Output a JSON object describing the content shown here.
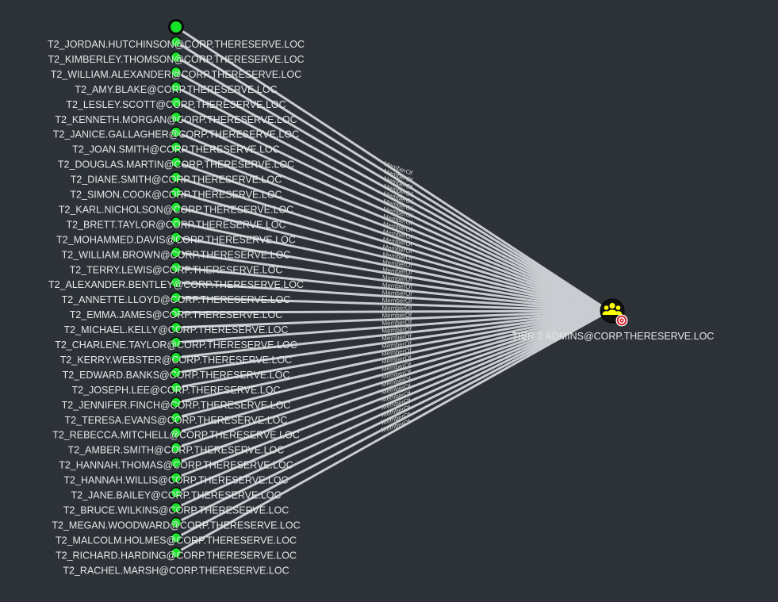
{
  "edge_label": "MemberOf",
  "colors": {
    "background": "#2d3238",
    "user_node": "#17e02a",
    "user_node_border": "#0a0a0a",
    "group_node": "#ffff00",
    "group_node_fill": "#111111",
    "target_badge": "#e0242f",
    "edge": "#c9ccd0",
    "label": "#e6e6e6"
  },
  "group": {
    "label": "TIER 2 ADMINS@CORP.THERESERVE.LOC",
    "icon": "users-group-icon",
    "badge_icon": "target-icon"
  },
  "users": [
    "T2_JORDAN.HUTCHINSON@CORP.THERESERVE.LOC",
    "T2_KIMBERLEY.THOMSON@CORP.THERESERVE.LOC",
    "T2_WILLIAM.ALEXANDER@CORP.THERESERVE.LOC",
    "T2_AMY.BLAKE@CORP.THERESERVE.LOC",
    "T2_LESLEY.SCOTT@CORP.THERESERVE.LOC",
    "T2_KENNETH.MORGAN@CORP.THERESERVE.LOC",
    "T2_JANICE.GALLAGHER@CORP.THERESERVE.LOC",
    "T2_JOAN.SMITH@CORP.THERESERVE.LOC",
    "T2_DOUGLAS.MARTIN@CORP.THERESERVE.LOC",
    "T2_DIANE.SMITH@CORP.THERESERVE.LOC",
    "T2_SIMON.COOK@CORP.THERESERVE.LOC",
    "T2_KARL.NICHOLSON@CORP.THERESERVE.LOC",
    "T2_BRETT.TAYLOR@CORP.THERESERVE.LOC",
    "T2_MOHAMMED.DAVIS@CORP.THERESERVE.LOC",
    "T2_WILLIAM.BROWN@CORP.THERESERVE.LOC",
    "T2_TERRY.LEWIS@CORP.THERESERVE.LOC",
    "T2_ALEXANDER.BENTLEY@CORP.THERESERVE.LOC",
    "T2_ANNETTE.LLOYD@CORP.THERESERVE.LOC",
    "T2_EMMA.JAMES@CORP.THERESERVE.LOC",
    "T2_MICHAEL.KELLY@CORP.THERESERVE.LOC",
    "T2_CHARLENE.TAYLOR@CORP.THERESERVE.LOC",
    "T2_KERRY.WEBSTER@CORP.THERESERVE.LOC",
    "T2_EDWARD.BANKS@CORP.THERESERVE.LOC",
    "T2_JOSEPH.LEE@CORP.THERESERVE.LOC",
    "T2_JENNIFER.FINCH@CORP.THERESERVE.LOC",
    "T2_TERESA.EVANS@CORP.THERESERVE.LOC",
    "T2_REBECCA.MITCHELL@CORP.THERESERVE.LOC",
    "T2_AMBER.SMITH@CORP.THERESERVE.LOC",
    "T2_HANNAH.THOMAS@CORP.THERESERVE.LOC",
    "T2_HANNAH.WILLIS@CORP.THERESERVE.LOC",
    "T2_JANE.BAILEY@CORP.THERESERVE.LOC",
    "T2_BRUCE.WILKINS@CORP.THERESERVE.LOC",
    "T2_MEGAN.WOODWARD@CORP.THERESERVE.LOC",
    "T2_MALCOLM.HOLMES@CORP.THERESERVE.LOC",
    "T2_RICHARD.HARDING@CORP.THERESERVE.LOC",
    "T2_RACHEL.MARSH@CORP.THERESERVE.LOC"
  ]
}
